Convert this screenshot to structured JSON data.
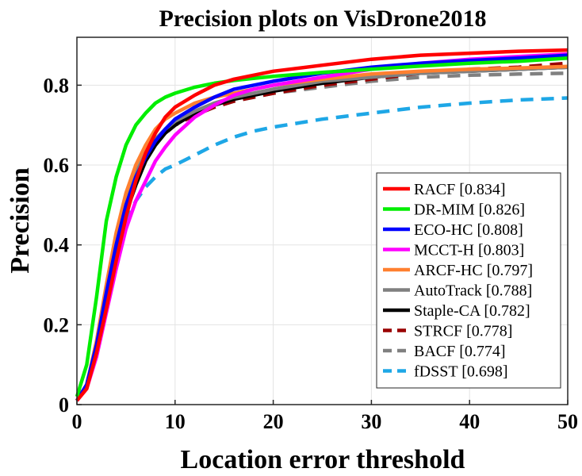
{
  "chart_data": {
    "type": "line",
    "title": "Precision plots on VisDrone2018",
    "xlabel": "Location error threshold",
    "ylabel": "Precision",
    "xlim": [
      0,
      50
    ],
    "ylim": [
      0,
      0.9
    ],
    "xticks": [
      0,
      10,
      20,
      30,
      40,
      50
    ],
    "xtick_labels": [
      "0",
      "10",
      "20",
      "30",
      "40",
      "50"
    ],
    "yticks": [
      0,
      0.2,
      0.4,
      0.6,
      0.8
    ],
    "ytick_labels": [
      "0",
      "0.2",
      "0.4",
      "0.6",
      "0.8"
    ],
    "grid": true,
    "legend_position": "bottom-right",
    "series": [
      {
        "name": "RACF",
        "score": "[0.834]",
        "color": "#ff0000",
        "dash": "solid",
        "x": [
          0,
          1,
          2,
          3,
          4,
          5,
          6,
          7,
          8,
          9,
          10,
          12,
          14,
          16,
          18,
          20,
          25,
          30,
          35,
          40,
          45,
          50
        ],
        "y": [
          0.01,
          0.04,
          0.13,
          0.24,
          0.36,
          0.47,
          0.56,
          0.63,
          0.68,
          0.72,
          0.745,
          0.775,
          0.8,
          0.815,
          0.825,
          0.835,
          0.85,
          0.865,
          0.875,
          0.88,
          0.885,
          0.888
        ]
      },
      {
        "name": "DR-MIM",
        "score": "[0.826]",
        "color": "#00ee00",
        "dash": "solid",
        "x": [
          0,
          1,
          2,
          3,
          4,
          5,
          6,
          7,
          8,
          9,
          10,
          12,
          14,
          16,
          18,
          20,
          25,
          30,
          35,
          40,
          45,
          50
        ],
        "y": [
          0.02,
          0.1,
          0.27,
          0.46,
          0.57,
          0.65,
          0.7,
          0.73,
          0.755,
          0.77,
          0.78,
          0.795,
          0.805,
          0.812,
          0.817,
          0.822,
          0.832,
          0.84,
          0.848,
          0.855,
          0.86,
          0.868
        ]
      },
      {
        "name": "ECO-HC",
        "score": "[0.808]",
        "color": "#0000ff",
        "dash": "solid",
        "x": [
          0,
          1,
          2,
          3,
          4,
          5,
          6,
          7,
          8,
          9,
          10,
          12,
          14,
          16,
          18,
          20,
          25,
          30,
          35,
          40,
          45,
          50
        ],
        "y": [
          0.01,
          0.05,
          0.15,
          0.28,
          0.4,
          0.5,
          0.57,
          0.62,
          0.66,
          0.69,
          0.715,
          0.745,
          0.77,
          0.79,
          0.8,
          0.81,
          0.83,
          0.845,
          0.855,
          0.862,
          0.868,
          0.875
        ]
      },
      {
        "name": "MCCT-H",
        "score": "[0.803]",
        "color": "#ff00ff",
        "dash": "solid",
        "x": [
          0,
          1,
          2,
          3,
          4,
          5,
          6,
          7,
          8,
          9,
          10,
          12,
          14,
          16,
          18,
          20,
          25,
          30,
          35,
          40,
          45,
          50
        ],
        "y": [
          0.01,
          0.04,
          0.12,
          0.23,
          0.34,
          0.44,
          0.51,
          0.56,
          0.61,
          0.645,
          0.675,
          0.72,
          0.75,
          0.775,
          0.79,
          0.8,
          0.82,
          0.84,
          0.855,
          0.865,
          0.872,
          0.878
        ]
      },
      {
        "name": "ARCF-HC",
        "score": "[0.797]",
        "color": "#ff8030",
        "dash": "solid",
        "x": [
          0,
          1,
          2,
          3,
          4,
          5,
          6,
          7,
          8,
          9,
          10,
          12,
          14,
          16,
          18,
          20,
          25,
          30,
          35,
          40,
          45,
          50
        ],
        "y": [
          0.01,
          0.05,
          0.16,
          0.3,
          0.43,
          0.53,
          0.6,
          0.65,
          0.69,
          0.715,
          0.73,
          0.755,
          0.77,
          0.78,
          0.79,
          0.8,
          0.815,
          0.828,
          0.835,
          0.84,
          0.843,
          0.847
        ]
      },
      {
        "name": "AutoTrack",
        "score": "[0.788]",
        "color": "#808080",
        "dash": "solid",
        "x": [
          0,
          1,
          2,
          3,
          4,
          5,
          6,
          7,
          8,
          9,
          10,
          12,
          14,
          16,
          18,
          20,
          25,
          30,
          35,
          40,
          45,
          50
        ],
        "y": [
          0.01,
          0.05,
          0.15,
          0.28,
          0.41,
          0.51,
          0.58,
          0.63,
          0.665,
          0.69,
          0.71,
          0.735,
          0.755,
          0.77,
          0.78,
          0.79,
          0.81,
          0.82,
          0.83,
          0.835,
          0.84,
          0.845
        ]
      },
      {
        "name": "Staple-CA",
        "score": "[0.782]",
        "color": "#000000",
        "dash": "solid",
        "x": [
          0,
          1,
          2,
          3,
          4,
          5,
          6,
          7,
          8,
          9,
          10,
          12,
          14,
          16,
          18,
          20,
          25,
          30,
          35,
          40,
          45,
          50
        ],
        "y": [
          0.01,
          0.05,
          0.14,
          0.27,
          0.39,
          0.48,
          0.55,
          0.61,
          0.65,
          0.68,
          0.7,
          0.73,
          0.75,
          0.765,
          0.775,
          0.785,
          0.805,
          0.82,
          0.83,
          0.835,
          0.84,
          0.845
        ]
      },
      {
        "name": "STRCF",
        "score": "[0.778]",
        "color": "#990000",
        "dash": "dashed",
        "x": [
          0,
          1,
          2,
          3,
          4,
          5,
          6,
          7,
          8,
          9,
          10,
          12,
          14,
          16,
          18,
          20,
          25,
          30,
          35,
          40,
          45,
          50
        ],
        "y": [
          0.01,
          0.05,
          0.15,
          0.28,
          0.4,
          0.5,
          0.57,
          0.62,
          0.655,
          0.68,
          0.7,
          0.725,
          0.745,
          0.76,
          0.77,
          0.78,
          0.8,
          0.815,
          0.83,
          0.84,
          0.845,
          0.855
        ]
      },
      {
        "name": "BACF",
        "score": "[0.774]",
        "color": "#808080",
        "dash": "dashed",
        "x": [
          0,
          1,
          2,
          3,
          4,
          5,
          6,
          7,
          8,
          9,
          10,
          12,
          14,
          16,
          18,
          20,
          25,
          30,
          35,
          40,
          45,
          50
        ],
        "y": [
          0.01,
          0.05,
          0.15,
          0.28,
          0.4,
          0.5,
          0.57,
          0.62,
          0.655,
          0.68,
          0.7,
          0.725,
          0.745,
          0.76,
          0.77,
          0.78,
          0.795,
          0.81,
          0.82,
          0.825,
          0.828,
          0.83
        ]
      },
      {
        "name": "fDSST",
        "score": "[0.698]",
        "color": "#1ea7e6",
        "dash": "dashed",
        "x": [
          0,
          1,
          2,
          3,
          4,
          5,
          6,
          7,
          8,
          9,
          10,
          12,
          14,
          16,
          18,
          20,
          25,
          30,
          35,
          40,
          45,
          50
        ],
        "y": [
          0.01,
          0.05,
          0.14,
          0.26,
          0.37,
          0.46,
          0.51,
          0.545,
          0.57,
          0.59,
          0.6,
          0.625,
          0.65,
          0.67,
          0.685,
          0.695,
          0.715,
          0.73,
          0.745,
          0.755,
          0.763,
          0.768
        ]
      }
    ]
  }
}
